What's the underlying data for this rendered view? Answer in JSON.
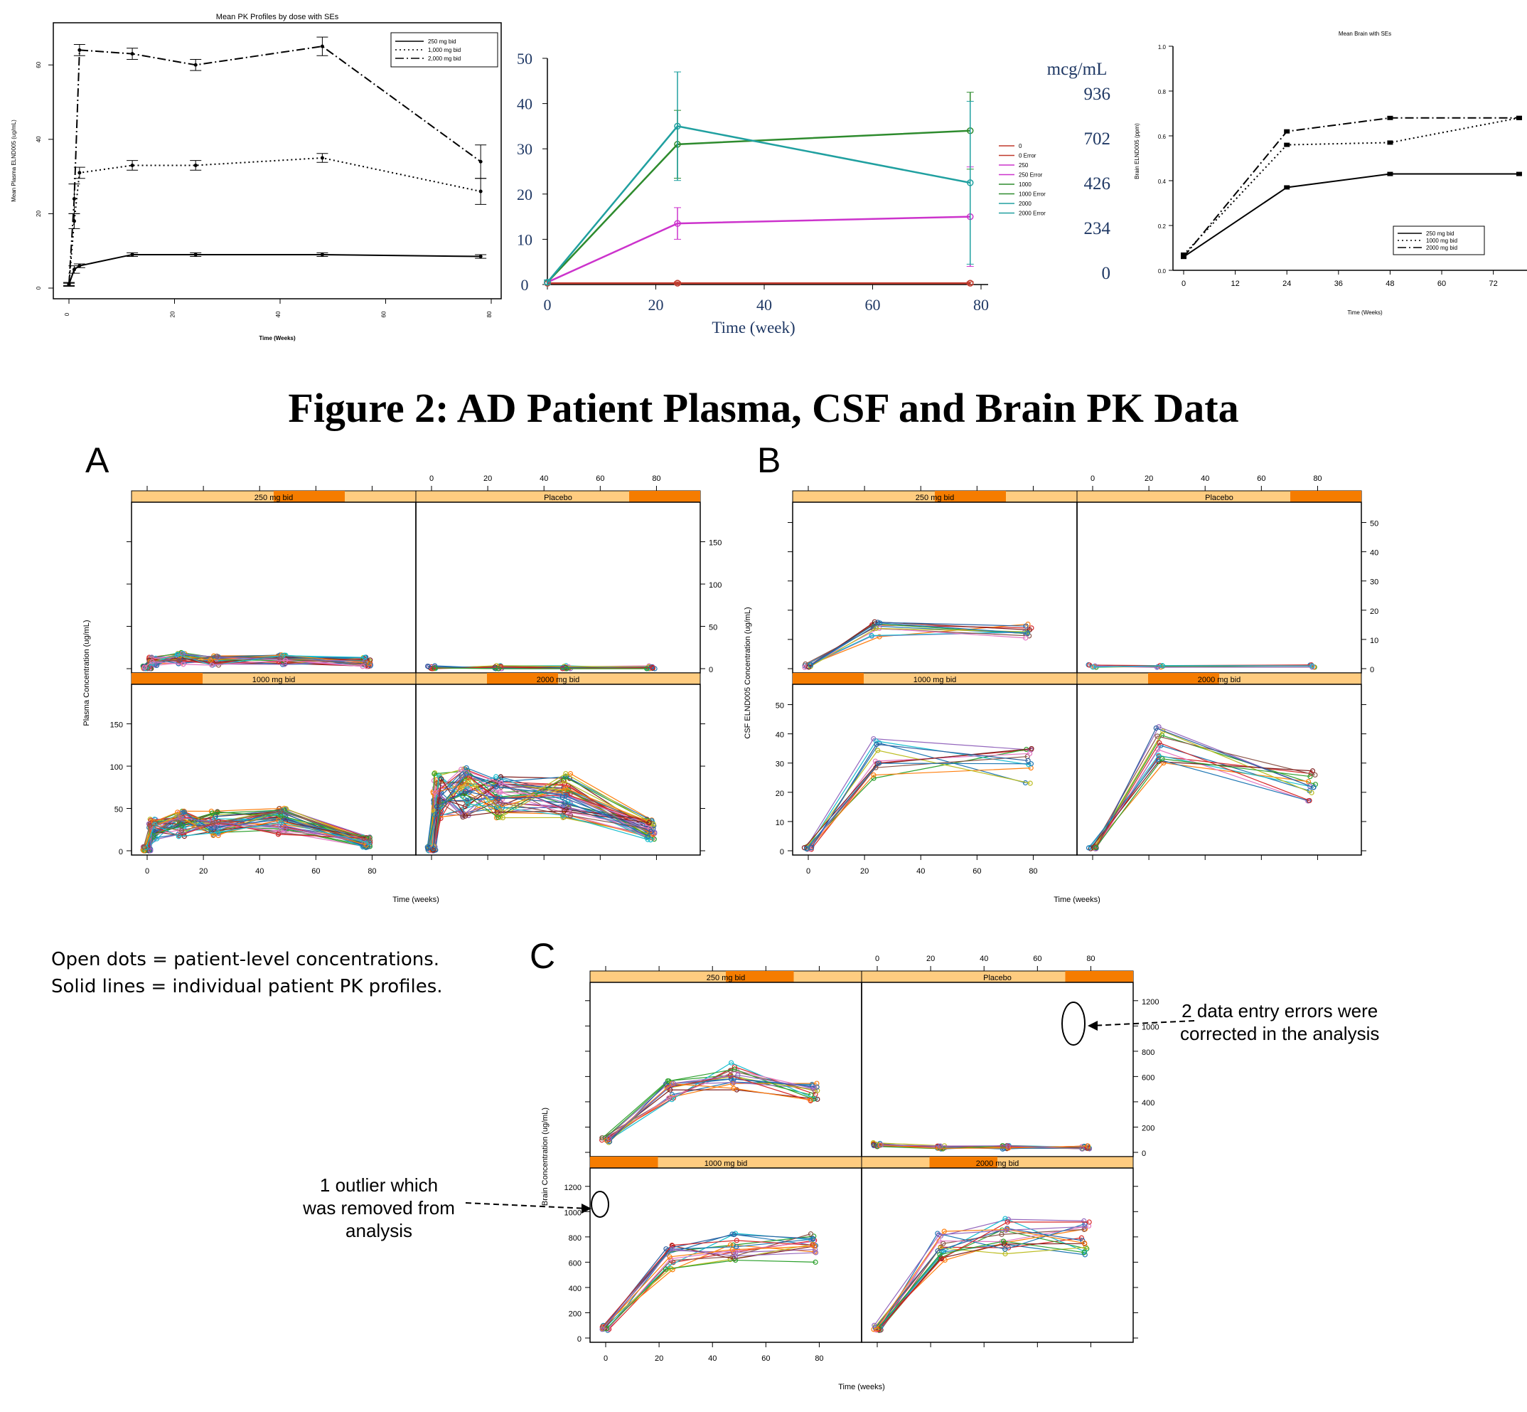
{
  "figure_title": "Figure 2:  AD Patient Plasma, CSF and Brain PK Data",
  "panel_letters": [
    "A",
    "B",
    "C"
  ],
  "caption": {
    "line1": "Open dots = patient-level concentrations.",
    "line2": "Solid lines = individual patient PK profiles."
  },
  "annotations": {
    "errors": [
      "2 data entry errors were",
      "corrected in the analysis"
    ],
    "outlier": [
      "1 outlier which",
      "was removed from",
      "analysis"
    ]
  },
  "chart_data": [
    {
      "id": "top-plasma",
      "type": "line",
      "title": "Mean PK Profiles by dose with SEs",
      "xlabel": "Time (Weeks)",
      "ylabel": "Mean Plasma ELND005 (ug/mL)",
      "xlim": [
        0,
        80
      ],
      "ylim": [
        0,
        70
      ],
      "xticks": [
        "0",
        "20",
        "40",
        "60",
        "80"
      ],
      "yticks": [
        "0",
        "20",
        "40",
        "60"
      ],
      "legend": [
        "250 mg bid",
        "1,000 mg bid",
        "2,000 mg bid"
      ],
      "legend_position": "top-right",
      "series": [
        {
          "name": "250 mg bid",
          "style": "solid",
          "x": [
            0,
            1,
            2,
            12,
            24,
            48,
            78
          ],
          "y": [
            1,
            5,
            6,
            9,
            9,
            9,
            8.5
          ],
          "se": [
            0.3,
            1,
            0.5,
            0.5,
            0.5,
            0.5,
            0.5
          ]
        },
        {
          "name": "1,000 mg bid",
          "style": "dotted",
          "x": [
            0,
            1,
            2,
            12,
            24,
            48,
            78
          ],
          "y": [
            1,
            18,
            31,
            33,
            33,
            35,
            26
          ],
          "se": [
            0.5,
            2,
            1.5,
            1.3,
            1.3,
            1.2,
            3.5
          ]
        },
        {
          "name": "2,000 mg bid",
          "style": "dashdot",
          "x": [
            0,
            1,
            2,
            12,
            24,
            48,
            78
          ],
          "y": [
            1,
            24,
            64,
            63,
            60,
            65,
            34
          ],
          "se": [
            0.5,
            4,
            1.5,
            1.5,
            1.5,
            2.5,
            4.5
          ]
        }
      ]
    },
    {
      "id": "top-csf",
      "type": "line",
      "xlabel": "Time (week)",
      "xlim": [
        0,
        80
      ],
      "ylim": [
        0,
        50
      ],
      "xticks": [
        "0",
        "20",
        "40",
        "60",
        "80"
      ],
      "yticks": [
        "0",
        "10",
        "20",
        "30",
        "40",
        "50"
      ],
      "legend": [
        "0",
        "0 Error",
        "250",
        "250 Error",
        "1000",
        "1000 Error",
        "2000",
        "2000 Error"
      ],
      "legend_position": "right",
      "series": [
        {
          "name": "0",
          "color": "#c0392b",
          "x": [
            0,
            24,
            78
          ],
          "y": [
            0.3,
            0.3,
            0.3
          ],
          "se": [
            0.3,
            0.3,
            0.3
          ]
        },
        {
          "name": "250",
          "color": "#cc33cc",
          "x": [
            0,
            24,
            78
          ],
          "y": [
            0.5,
            13.5,
            15
          ],
          "se": [
            0.5,
            3.5,
            11
          ]
        },
        {
          "name": "1000",
          "color": "#2e8b2e",
          "x": [
            0,
            24,
            78
          ],
          "y": [
            0.5,
            31,
            34
          ],
          "se": [
            0.5,
            7.5,
            8.5
          ]
        },
        {
          "name": "2000",
          "color": "#20a0a0",
          "x": [
            0,
            24,
            78
          ],
          "y": [
            0.5,
            35,
            22.5
          ],
          "se": [
            0.5,
            12,
            18
          ]
        }
      ],
      "secondary_axis": {
        "title": "mcg/mL",
        "ticks": [
          "936",
          "702",
          "426",
          "234",
          "0"
        ]
      }
    },
    {
      "id": "top-brain",
      "type": "line",
      "title": "Mean Brain with SEs",
      "xlabel": "Time (Weeks)",
      "ylabel": "Brain ELND005 (ppm)",
      "xlim": [
        0,
        80
      ],
      "ylim": [
        0,
        1.0
      ],
      "xticks": [
        "0",
        "12",
        "24",
        "36",
        "48",
        "60",
        "72"
      ],
      "yticks": [
        "0.0",
        "0.2",
        "0.4",
        "0.6",
        "0.8",
        "1.0"
      ],
      "legend": [
        "250 mg bid",
        "1000 mg bid",
        "2000 mg bid"
      ],
      "legend_position": "bottom-right",
      "series": [
        {
          "name": "250 mg bid",
          "style": "solid",
          "x": [
            0,
            24,
            48,
            78
          ],
          "y": [
            0.06,
            0.37,
            0.43,
            0.43
          ]
        },
        {
          "name": "1000 mg bid",
          "style": "dotted",
          "x": [
            0,
            24,
            48,
            78
          ],
          "y": [
            0.07,
            0.56,
            0.57,
            0.68
          ]
        },
        {
          "name": "2000 mg bid",
          "style": "dashdot",
          "x": [
            0,
            24,
            48,
            78
          ],
          "y": [
            0.06,
            0.62,
            0.68,
            0.68
          ]
        }
      ]
    },
    {
      "id": "A",
      "type": "scatter",
      "ylabel": "Plasma Concentration (ug/mL)",
      "xlabel": "Time (weeks)",
      "panels": [
        "250 mg bid",
        "Placebo",
        "1000 mg bid",
        "2000 mg bid"
      ],
      "xlim": [
        0,
        90
      ],
      "ylim": [
        0,
        190
      ],
      "xticks": [
        "0",
        "20",
        "40",
        "60",
        "80"
      ],
      "yticks": [
        "0",
        "50",
        "100",
        "150"
      ],
      "panel_means": {
        "250 mg bid": {
          "x": [
            0,
            2,
            12,
            24,
            48,
            78
          ],
          "y": [
            1,
            8,
            12,
            10,
            10,
            8
          ]
        },
        "Placebo": {
          "x": [
            0,
            24,
            48,
            78
          ],
          "y": [
            1,
            1,
            1,
            1
          ]
        },
        "1000 mg bid": {
          "x": [
            0,
            2,
            12,
            24,
            48,
            78
          ],
          "y": [
            2,
            25,
            32,
            33,
            35,
            10
          ]
        },
        "2000 mg bid": {
          "x": [
            0,
            2,
            12,
            24,
            48,
            78
          ],
          "y": [
            3,
            65,
            70,
            62,
            65,
            25
          ]
        }
      }
    },
    {
      "id": "B",
      "type": "scatter",
      "ylabel": "CSF ELND005 Concentration (ug/mL)",
      "xlabel": "Time (weeks)",
      "panels": [
        "250 mg bid",
        "Placebo",
        "1000 mg bid",
        "2000 mg bid"
      ],
      "xlim": [
        0,
        90
      ],
      "ylim": [
        0,
        55
      ],
      "xticks": [
        "0",
        "20",
        "40",
        "60",
        "80"
      ],
      "yticks": [
        "0",
        "10",
        "20",
        "30",
        "40",
        "50"
      ],
      "panel_means": {
        "250 mg bid": {
          "x": [
            0,
            24,
            78
          ],
          "y": [
            1,
            14,
            13
          ]
        },
        "Placebo": {
          "x": [
            0,
            24,
            78
          ],
          "y": [
            1,
            1,
            1
          ]
        },
        "1000 mg bid": {
          "x": [
            0,
            24,
            78
          ],
          "y": [
            1,
            31,
            30
          ]
        },
        "2000 mg bid": {
          "x": [
            0,
            24,
            78
          ],
          "y": [
            1,
            35,
            22
          ]
        }
      }
    },
    {
      "id": "C",
      "type": "scatter",
      "ylabel": "Brain Concentration (ug/mL)",
      "xlabel": "Time (weeks)",
      "panels": [
        "250 mg bid",
        "Placebo",
        "1000 mg bid",
        "2000 mg bid"
      ],
      "xlim": [
        0,
        90
      ],
      "ylim": [
        0,
        1300
      ],
      "xticks": [
        "0",
        "20",
        "40",
        "60",
        "80"
      ],
      "yticks": [
        "0",
        "200",
        "400",
        "600",
        "800",
        "1000",
        "1200"
      ],
      "panel_means": {
        "250 mg bid": {
          "x": [
            0,
            24,
            48,
            78
          ],
          "y": [
            100,
            480,
            600,
            480
          ]
        },
        "Placebo": {
          "x": [
            0,
            24,
            48,
            78
          ],
          "y": [
            60,
            40,
            40,
            40
          ]
        },
        "1000 mg bid": {
          "x": [
            0,
            24,
            48,
            78
          ],
          "y": [
            80,
            620,
            700,
            700
          ]
        },
        "2000 mg bid": {
          "x": [
            0,
            24,
            48,
            78
          ],
          "y": [
            80,
            720,
            800,
            800
          ]
        }
      }
    }
  ]
}
